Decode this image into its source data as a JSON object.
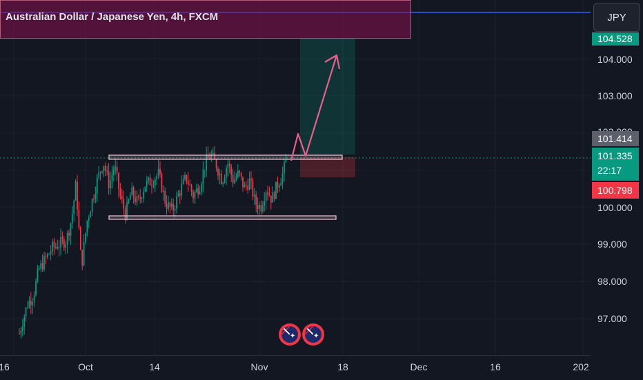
{
  "chart": {
    "title": "Australian Dollar / Japanese Yen, 4h, FXCM",
    "currency_button": "JPY"
  },
  "price_axis": {
    "ticks": [
      {
        "label": "104.000",
        "value": 104.0
      },
      {
        "label": "103.000",
        "value": 103.0
      },
      {
        "label": "100.000",
        "value": 100.0
      },
      {
        "label": "99.000",
        "value": 99.0
      },
      {
        "label": "98.000",
        "value": 98.0
      },
      {
        "label": "97.000",
        "value": 97.0
      }
    ],
    "partial_tick": "102.000",
    "labels": {
      "target": "104.528",
      "crosshair": "101.414",
      "last_price": "101.335",
      "countdown": "22:17",
      "stop": "100.798"
    }
  },
  "time_axis": {
    "ticks": [
      "16",
      "Oct",
      "14",
      "Nov",
      "18",
      "Dec",
      "16",
      "202"
    ]
  },
  "levels": {
    "resistance": 101.3,
    "support": 100.0,
    "entry": 101.35,
    "target": 104.53,
    "stop": 100.8
  },
  "colors": {
    "background": "#131722",
    "up": "#089981",
    "down": "#f23645",
    "arrow": "#e8608a",
    "zone": "#f5c7d8"
  }
}
